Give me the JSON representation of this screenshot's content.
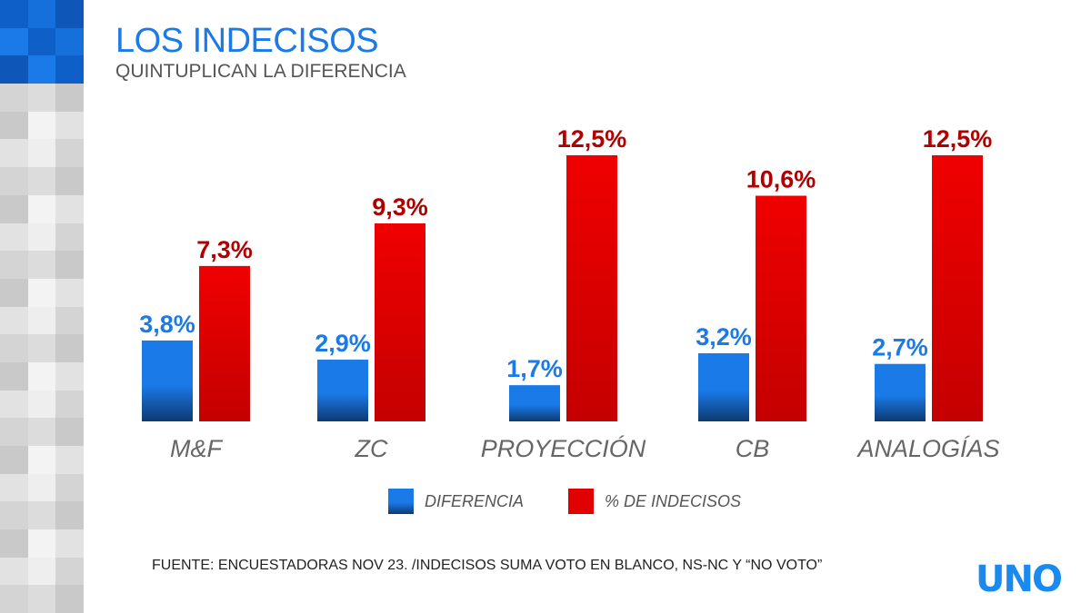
{
  "header": {
    "title": "LOS INDECISOS",
    "subtitle": "QUINTUPLICAN LA DIFERENCIA"
  },
  "chart_data": {
    "type": "bar",
    "categories": [
      "M&F",
      "ZC",
      "PROYECCIÓN",
      "CB",
      "ANALOGÍAS"
    ],
    "series": [
      {
        "name": "DIFERENCIA",
        "values": [
          3.8,
          2.9,
          1.7,
          3.2,
          2.7
        ],
        "labels": [
          "3,8%",
          "2,9%",
          "1,7%",
          "3,2%",
          "2,7%"
        ],
        "color": "#1a7ae8"
      },
      {
        "name": "% DE INDECISOS",
        "values": [
          7.3,
          9.3,
          12.5,
          10.6,
          12.5
        ],
        "labels": [
          "7,3%",
          "9,3%",
          "12,5%",
          "10,6%",
          "12,5%"
        ],
        "color": "#e00000"
      }
    ],
    "ylim": [
      0,
      12.5
    ],
    "grid": false,
    "legend": "bottom"
  },
  "footer": {
    "source": "FUENTE: ENCUESTADORAS NOV 23. /INDECISOS SUMA VOTO EN BLANCO, NS-NC Y “NO VOTO”",
    "logo": "UNO"
  }
}
